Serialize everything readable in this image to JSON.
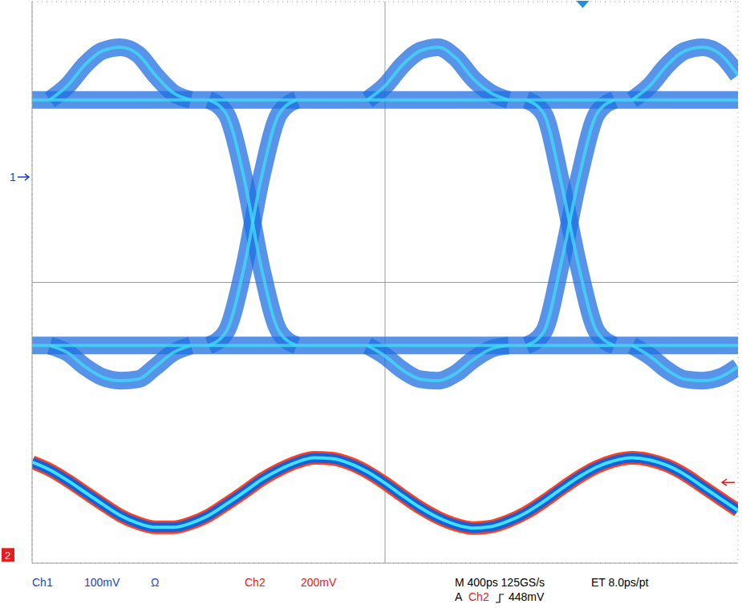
{
  "chart_data": {
    "type": "line",
    "grid": true,
    "tick_labels": false,
    "xlim": [
      0,
      4000
    ],
    "xticks": [
      0,
      400,
      800,
      1200,
      1600,
      2000,
      2400,
      2800,
      3200,
      3600,
      4000
    ],
    "ylim": [
      -4,
      4
    ],
    "yticks": [
      -4,
      -3,
      -2,
      -1,
      0,
      1,
      2,
      3,
      4
    ],
    "x": [
      0,
      100,
      200,
      300,
      400,
      500,
      600,
      700,
      800,
      900,
      1000,
      1100,
      1200,
      1300,
      1400,
      1500,
      1600,
      1700,
      1800,
      1900,
      2000,
      2100,
      2200,
      2300,
      2400,
      2500,
      2600,
      2700,
      2800,
      2900,
      3000,
      3100,
      3200,
      3300,
      3400,
      3500,
      3600,
      3700,
      3800,
      3900,
      4000
    ],
    "series": [
      {
        "color": "#1f6fe0",
        "values": [
          2.6,
          2.6,
          2.6,
          2.6,
          2.6,
          2.6,
          2.6,
          2.6,
          2.6,
          2.6,
          2.6,
          2.6,
          2.6,
          2.6,
          2.6,
          2.6,
          2.6,
          2.6,
          2.6,
          2.6,
          2.6,
          2.6,
          2.6,
          2.6,
          2.6,
          2.6,
          2.6,
          2.6,
          2.6,
          2.6,
          2.6,
          2.6,
          2.6,
          2.6,
          2.6,
          2.6,
          2.6,
          2.6,
          2.6,
          2.6,
          2.6
        ]
      },
      {
        "color": "#1f6fe0",
        "values": [
          null,
          2.6,
          2.8,
          3.1,
          3.3,
          3.35,
          3.25,
          2.95,
          2.7,
          2.6,
          null,
          null,
          null,
          null,
          null,
          null,
          null,
          null,
          null,
          2.6,
          2.8,
          3.1,
          3.3,
          3.35,
          3.2,
          2.9,
          2.7,
          2.6,
          null,
          null,
          null,
          null,
          null,
          null,
          2.6,
          2.8,
          3.1,
          3.3,
          3.35,
          3.25,
          2.95
        ]
      },
      {
        "color": "#1f6fe0",
        "values": [
          -0.9,
          -0.9,
          -0.9,
          -0.9,
          -0.9,
          -0.9,
          -0.9,
          -0.9,
          -0.9,
          -0.9,
          -0.9,
          -0.9,
          -0.9,
          -0.9,
          -0.9,
          -0.9,
          -0.9,
          -0.9,
          -0.9,
          -0.9,
          -0.9,
          -0.9,
          -0.9,
          -0.9,
          -0.9,
          -0.9,
          -0.9,
          -0.9,
          -0.9,
          -0.9,
          -0.9,
          -0.9,
          -0.9,
          -0.9,
          -0.9,
          -0.9,
          -0.9,
          -0.9,
          -0.9,
          -0.9,
          -0.9
        ]
      },
      {
        "color": "#1f6fe0",
        "values": [
          null,
          -0.9,
          -1.0,
          -1.2,
          -1.35,
          -1.4,
          -1.38,
          -1.2,
          -1.0,
          -0.9,
          null,
          null,
          null,
          null,
          null,
          null,
          null,
          null,
          null,
          -0.9,
          -1.05,
          -1.25,
          -1.38,
          -1.4,
          -1.3,
          -1.1,
          -0.95,
          -0.9,
          null,
          null,
          null,
          null,
          null,
          null,
          -0.9,
          -1.05,
          -1.25,
          -1.38,
          -1.4,
          -1.35,
          -1.2
        ]
      },
      {
        "color": "#1f6fe0",
        "values": [
          null,
          null,
          null,
          null,
          null,
          null,
          null,
          null,
          null,
          null,
          -0.9,
          -0.7,
          0.2,
          1.5,
          2.4,
          2.6,
          null,
          null,
          null,
          null,
          null,
          null,
          null,
          null,
          null,
          null,
          null,
          null,
          -0.9,
          -0.7,
          0.3,
          1.5,
          2.4,
          2.6,
          null,
          null,
          null,
          null,
          null,
          null,
          null
        ]
      },
      {
        "color": "#1f6fe0",
        "values": [
          null,
          null,
          null,
          null,
          null,
          null,
          null,
          null,
          null,
          null,
          2.6,
          2.4,
          1.5,
          0.2,
          -0.7,
          -0.9,
          null,
          null,
          null,
          null,
          null,
          null,
          null,
          null,
          null,
          null,
          null,
          null,
          2.6,
          2.4,
          1.4,
          0.2,
          -0.7,
          -0.9,
          null,
          null,
          null,
          null,
          null,
          null,
          null
        ]
      },
      {
        "color": "#ff4020",
        "values": [
          -2.56,
          -2.67,
          -2.82,
          -2.99,
          -3.16,
          -3.32,
          -3.43,
          -3.49,
          -3.49,
          -3.43,
          -3.32,
          -3.16,
          -2.99,
          -2.81,
          -2.67,
          -2.56,
          -2.5,
          -2.51,
          -2.58,
          -2.7,
          -2.86,
          -3.04,
          -3.21,
          -3.35,
          -3.45,
          -3.5,
          -3.48,
          -3.4,
          -3.28,
          -3.12,
          -2.94,
          -2.77,
          -2.63,
          -2.54,
          -2.5,
          -2.53,
          -2.61,
          -2.74,
          -2.91,
          -3.08,
          -3.25
        ]
      }
    ],
    "markers": {
      "ch1": {
        "label": "1",
        "value": 1.5
      },
      "ch2": {
        "label": "2",
        "value": -3.9
      },
      "trigger_level": -2.85,
      "trigger_time": 3120
    },
    "footer": {
      "ch1": [
        "Ch1",
        "100mV",
        "Ω"
      ],
      "ch2": [
        "Ch2",
        "200mV"
      ],
      "timebase": [
        "M 400ps 125GS/s",
        "ET 8.0ps/pt"
      ],
      "trigger": [
        "A",
        "Ch2",
        "448mV"
      ]
    }
  }
}
